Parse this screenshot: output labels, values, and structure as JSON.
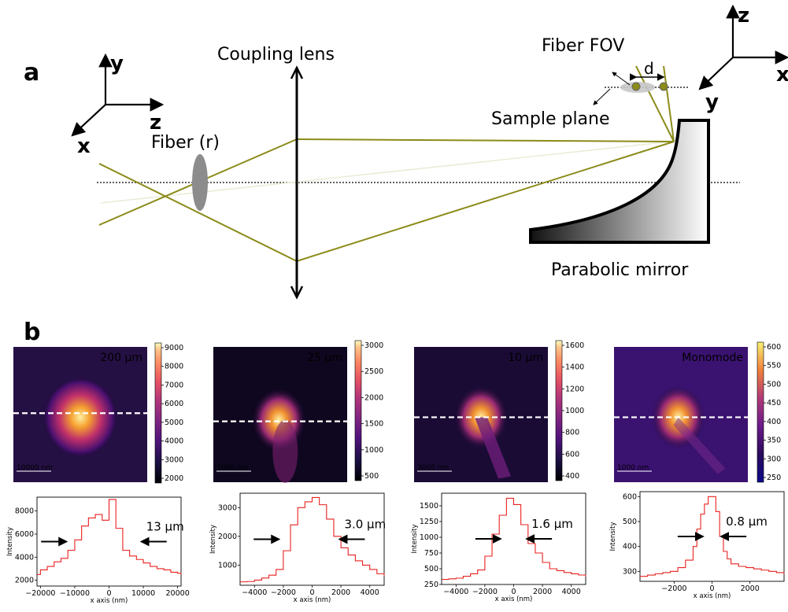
{
  "panel_a": {
    "letter": "a",
    "labels": {
      "coupling_lens": "Coupling lens",
      "fiber": "Fiber (r)",
      "fiber_fov": "Fiber FOV",
      "d": "d",
      "sample_plane": "Sample plane",
      "parabolic_mirror": "Parabolic mirror"
    },
    "left_axes": {
      "y": "y",
      "z": "z",
      "x": "x"
    },
    "right_axes": {
      "z": "z",
      "x": "x",
      "y": "y"
    },
    "colors": {
      "ray": "#8b8b1a",
      "ray_faint": "#e6e6cc",
      "fiber": "#8c8c8c"
    }
  },
  "panel_b": {
    "letter": "b",
    "plot_color": "#e8211f",
    "x_axis_label": "x axis (nm)",
    "y_axis_label": "Intensity",
    "panels": [
      {
        "title": "200 µm",
        "scalebar": "10000 nm",
        "colorbar_ticks": [
          "9000",
          "8000",
          "7000",
          "6000",
          "5000",
          "4000",
          "3000",
          "2000"
        ],
        "width_label": "13 µm",
        "x_ticks": [
          "−20000",
          "−10000",
          "0",
          "10000",
          "20000"
        ],
        "y_ticks": [
          "8000",
          "6000",
          "4000",
          "2000"
        ],
        "chart_data": {
          "type": "line",
          "x": [
            -22000,
            -20000,
            -18000,
            -16000,
            -14000,
            -12000,
            -10000,
            -8000,
            -6000,
            -4000,
            -2000,
            0,
            2000,
            4000,
            6000,
            8000,
            10000,
            12000,
            14000,
            16000,
            18000,
            20000,
            22000
          ],
          "values": [
            2500,
            2900,
            3200,
            3600,
            3900,
            4600,
            5500,
            6700,
            7400,
            7700,
            7200,
            9000,
            6500,
            4600,
            4100,
            3800,
            3500,
            3200,
            3000,
            2900,
            2700,
            2600,
            2500
          ],
          "xlim": [
            -21000,
            21000
          ],
          "ylim": [
            1500,
            9200
          ]
        }
      },
      {
        "title": "25 µm",
        "scalebar": "3000 nm",
        "colorbar_ticks": [
          "3000",
          "2500",
          "2000",
          "1500",
          "1000",
          "500"
        ],
        "width_label": "3.0 µm",
        "x_ticks": [
          "−4000",
          "−2000",
          "0",
          "2000",
          "4000"
        ],
        "y_ticks": [
          "3000",
          "2000",
          "1000"
        ],
        "chart_data": {
          "type": "line",
          "x": [
            -5000,
            -4500,
            -4000,
            -3500,
            -3000,
            -2500,
            -2000,
            -1500,
            -1000,
            -500,
            0,
            500,
            1000,
            1500,
            2000,
            2500,
            3000,
            3500,
            4000,
            4500,
            5000
          ],
          "values": [
            420,
            430,
            480,
            550,
            650,
            850,
            1500,
            2400,
            3000,
            3200,
            3350,
            3100,
            2600,
            2000,
            1600,
            1350,
            1150,
            1000,
            850,
            700,
            620
          ],
          "xlim": [
            -5000,
            5000
          ],
          "ylim": [
            300,
            3500
          ]
        }
      },
      {
        "title": "10 µm",
        "scalebar": "3000 nm",
        "colorbar_ticks": [
          "1600",
          "1400",
          "1200",
          "1000",
          "800",
          "600",
          "400"
        ],
        "width_label": "1.6 µm",
        "x_ticks": [
          "−4000",
          "−2000",
          "0",
          "2000",
          "4000"
        ],
        "y_ticks": [
          "1500",
          "1250",
          "1000",
          "750",
          "500",
          "250"
        ],
        "chart_data": {
          "type": "line",
          "x": [
            -5000,
            -4500,
            -4000,
            -3500,
            -3000,
            -2500,
            -2000,
            -1500,
            -1000,
            -500,
            0,
            500,
            1000,
            1500,
            2000,
            2500,
            3000,
            3500,
            4000,
            4500,
            5000
          ],
          "values": [
            330,
            340,
            350,
            380,
            420,
            480,
            700,
            1050,
            1350,
            1620,
            1520,
            1200,
            900,
            750,
            600,
            500,
            470,
            440,
            420,
            400,
            380
          ],
          "xlim": [
            -5000,
            5000
          ],
          "ylim": [
            250,
            1700
          ]
        }
      },
      {
        "title": "Monomode",
        "scalebar": "1000 nm",
        "colorbar_ticks": [
          "600",
          "550",
          "500",
          "450",
          "400",
          "350",
          "300",
          "250"
        ],
        "width_label": "0.8 µm",
        "x_ticks": [
          "−2000",
          "0",
          "2000"
        ],
        "y_ticks": [
          "600",
          "500",
          "400",
          "300"
        ],
        "chart_data": {
          "type": "line",
          "x": [
            -3800,
            -3400,
            -3000,
            -2600,
            -2200,
            -1800,
            -1400,
            -1000,
            -800,
            -600,
            -400,
            -200,
            0,
            200,
            400,
            600,
            800,
            1000,
            1400,
            1800,
            2200,
            2600,
            3000,
            3400,
            3800
          ],
          "values": [
            280,
            285,
            290,
            295,
            300,
            315,
            345,
            400,
            470,
            530,
            570,
            600,
            600,
            540,
            440,
            380,
            350,
            330,
            320,
            315,
            310,
            305,
            300,
            295,
            290
          ],
          "xlim": [
            -3800,
            3800
          ],
          "ylim": [
            260,
            620
          ]
        }
      }
    ]
  }
}
